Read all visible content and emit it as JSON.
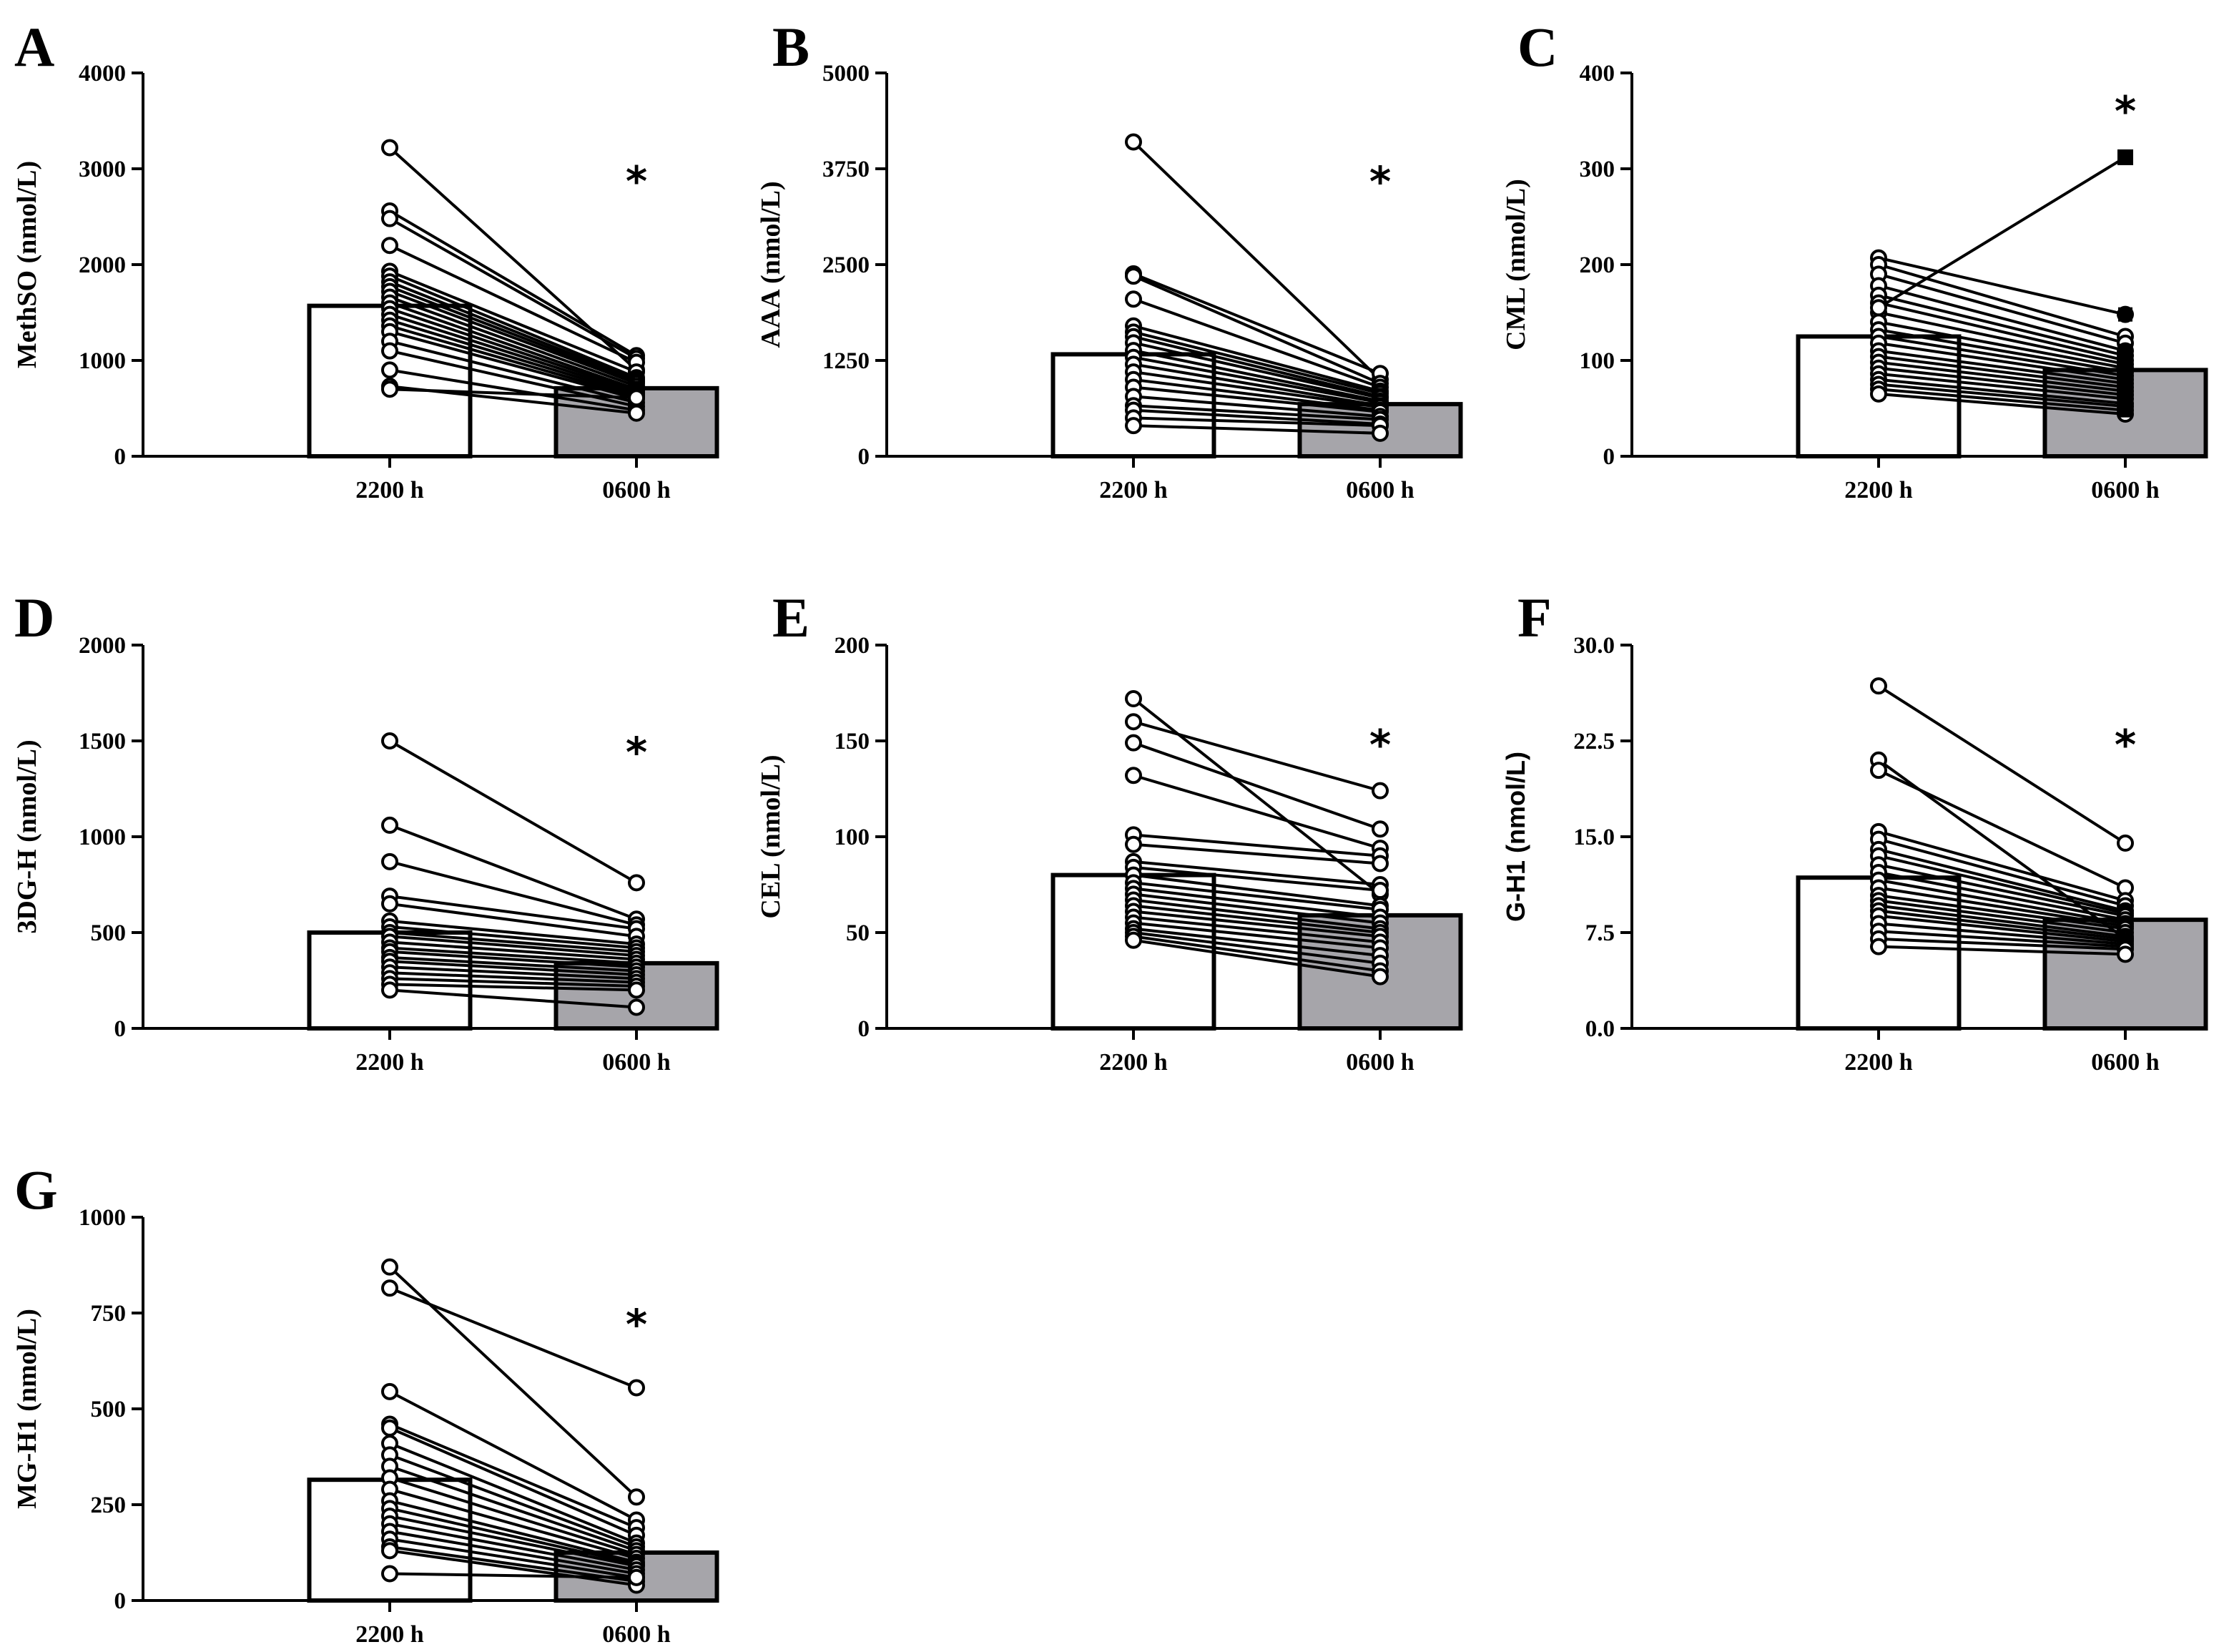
{
  "colors": {
    "bar_2200": "#ffffff",
    "bar_0600": "#a6a5aa",
    "ink": "#000000"
  },
  "chart_data": [
    {
      "panel": "A",
      "type": "bar",
      "ylabel": "MethSO (nmol/L)",
      "categories": [
        "2200 h",
        "0600 h"
      ],
      "ylim": [
        0,
        4000
      ],
      "ticks": [
        "0",
        "1000",
        "2000",
        "3000",
        "4000"
      ],
      "tick_values": [
        0,
        1000,
        2000,
        3000,
        4000
      ],
      "bar_values": [
        1570,
        710
      ],
      "significance": "*",
      "sig_y": 2870,
      "pairs": [
        [
          3220,
          900
        ],
        [
          2560,
          1050
        ],
        [
          2480,
          1020
        ],
        [
          2200,
          980
        ],
        [
          1930,
          880
        ],
        [
          1880,
          820
        ],
        [
          1820,
          800
        ],
        [
          1770,
          780
        ],
        [
          1720,
          760
        ],
        [
          1660,
          730
        ],
        [
          1600,
          700
        ],
        [
          1540,
          680
        ],
        [
          1480,
          660
        ],
        [
          1420,
          640
        ],
        [
          1360,
          620
        ],
        [
          1300,
          600
        ],
        [
          1200,
          560
        ],
        [
          1100,
          520
        ],
        [
          900,
          480
        ],
        [
          730,
          450
        ],
        [
          700,
          610
        ]
      ]
    },
    {
      "panel": "B",
      "type": "bar",
      "ylabel": "AAA (nmol/L)",
      "categories": [
        "2200 h",
        "0600 h"
      ],
      "ylim": [
        0,
        5000
      ],
      "ticks": [
        "0",
        "1250",
        "2500",
        "3750",
        "5000"
      ],
      "tick_values": [
        0,
        1250,
        2500,
        3750,
        5000
      ],
      "bar_values": [
        1330,
        680
      ],
      "significance": "*",
      "sig_y": 3580,
      "pairs": [
        [
          4100,
          1000
        ],
        [
          2380,
          1080
        ],
        [
          2350,
          950
        ],
        [
          2050,
          900
        ],
        [
          1700,
          850
        ],
        [
          1620,
          820
        ],
        [
          1560,
          780
        ],
        [
          1480,
          760
        ],
        [
          1380,
          720
        ],
        [
          1290,
          700
        ],
        [
          1200,
          660
        ],
        [
          1100,
          640
        ],
        [
          1000,
          600
        ],
        [
          900,
          580
        ],
        [
          780,
          520
        ],
        [
          660,
          480
        ],
        [
          600,
          420
        ],
        [
          500,
          400
        ],
        [
          400,
          300
        ]
      ]
    },
    {
      "panel": "C",
      "type": "bar",
      "ylabel": "CML (nmol/L)",
      "categories": [
        "2200 h",
        "0600 h"
      ],
      "ylim": [
        0,
        400
      ],
      "ticks": [
        "0",
        "100",
        "200",
        "300",
        "400"
      ],
      "tick_values": [
        0,
        100,
        200,
        300,
        400
      ],
      "bar_values": [
        125,
        90
      ],
      "significance": "*",
      "sig_y": 360,
      "outlier": [
        155,
        312
      ],
      "pairs": [
        [
          207,
          148
        ],
        [
          200,
          125
        ],
        [
          190,
          118
        ],
        [
          178,
          110
        ],
        [
          168,
          105
        ],
        [
          160,
          100
        ],
        [
          150,
          96
        ],
        [
          140,
          92
        ],
        [
          132,
          88
        ],
        [
          125,
          84
        ],
        [
          118,
          80
        ],
        [
          110,
          76
        ],
        [
          104,
          72
        ],
        [
          98,
          68
        ],
        [
          92,
          64
        ],
        [
          86,
          60
        ],
        [
          80,
          55
        ],
        [
          75,
          52
        ],
        [
          70,
          48
        ],
        [
          65,
          44
        ]
      ]
    },
    {
      "panel": "D",
      "type": "bar",
      "ylabel": "3DG-H (nmol/L)",
      "categories": [
        "2200 h",
        "0600 h"
      ],
      "ylim": [
        0,
        2000
      ],
      "ticks": [
        "0",
        "500",
        "1000",
        "1500",
        "2000"
      ],
      "tick_values": [
        0,
        500,
        1000,
        1500,
        2000
      ],
      "bar_values": [
        500,
        340
      ],
      "significance": "*",
      "sig_y": 1440,
      "pairs": [
        [
          1500,
          760
        ],
        [
          1060,
          570
        ],
        [
          870,
          540
        ],
        [
          690,
          520
        ],
        [
          650,
          480
        ],
        [
          560,
          440
        ],
        [
          530,
          420
        ],
        [
          500,
          400
        ],
        [
          480,
          380
        ],
        [
          450,
          360
        ],
        [
          420,
          340
        ],
        [
          400,
          320
        ],
        [
          370,
          300
        ],
        [
          350,
          280
        ],
        [
          320,
          260
        ],
        [
          290,
          240
        ],
        [
          260,
          220
        ],
        [
          230,
          200
        ],
        [
          200,
          110
        ]
      ]
    },
    {
      "panel": "E",
      "type": "bar",
      "ylabel": "CEL (nmol/L)",
      "categories": [
        "2200 h",
        "0600 h"
      ],
      "ylim": [
        0,
        200
      ],
      "ticks": [
        "0",
        "50",
        "100",
        "150",
        "200"
      ],
      "tick_values": [
        0,
        50,
        100,
        150,
        200
      ],
      "bar_values": [
        80,
        59
      ],
      "significance": "*",
      "sig_y": 148,
      "pairs": [
        [
          172,
          70
        ],
        [
          160,
          124
        ],
        [
          149,
          104
        ],
        [
          132,
          94
        ],
        [
          101,
          90
        ],
        [
          96,
          86
        ],
        [
          87,
          75
        ],
        [
          84,
          72
        ],
        [
          80,
          64
        ],
        [
          76,
          62
        ],
        [
          73,
          58
        ],
        [
          70,
          55
        ],
        [
          67,
          52
        ],
        [
          64,
          50
        ],
        [
          61,
          48
        ],
        [
          58,
          45
        ],
        [
          55,
          42
        ],
        [
          52,
          38
        ],
        [
          50,
          34
        ],
        [
          48,
          30
        ],
        [
          46,
          27
        ]
      ]
    },
    {
      "panel": "F",
      "type": "bar",
      "ylabel": "G-H1 (nmol/L)",
      "categories": [
        "2200 h",
        "0600 h"
      ],
      "ylim": [
        0,
        30
      ],
      "ticks": [
        "0.0",
        "7.5",
        "15.0",
        "22.5",
        "30.0"
      ],
      "tick_values": [
        0,
        7.5,
        15,
        22.5,
        30
      ],
      "bar_values": [
        11.8,
        8.5
      ],
      "significance": "*",
      "sig_y": 22.2,
      "pairs": [
        [
          26.8,
          14.5
        ],
        [
          21.0,
          7.0
        ],
        [
          20.2,
          11.0
        ],
        [
          15.4,
          10.0
        ],
        [
          14.8,
          9.6
        ],
        [
          14.0,
          9.2
        ],
        [
          13.5,
          9.0
        ],
        [
          12.8,
          8.8
        ],
        [
          12.2,
          8.5
        ],
        [
          11.6,
          8.2
        ],
        [
          11.0,
          8.0
        ],
        [
          10.4,
          7.8
        ],
        [
          10.0,
          7.5
        ],
        [
          9.6,
          7.2
        ],
        [
          9.2,
          7.0
        ],
        [
          8.8,
          6.8
        ],
        [
          8.2,
          6.6
        ],
        [
          7.6,
          6.4
        ],
        [
          7.0,
          6.2
        ],
        [
          6.4,
          5.8
        ]
      ]
    },
    {
      "panel": "G",
      "type": "bar",
      "ylabel": "MG-H1 (nmol/L)",
      "categories": [
        "2200 h",
        "0600 h"
      ],
      "ylim": [
        0,
        1000
      ],
      "ticks": [
        "0",
        "250",
        "500",
        "750",
        "1000"
      ],
      "tick_values": [
        0,
        250,
        500,
        750,
        1000
      ],
      "bar_values": [
        315,
        125
      ],
      "significance": "*",
      "sig_y": 720,
      "pairs": [
        [
          870,
          270
        ],
        [
          815,
          555
        ],
        [
          545,
          210
        ],
        [
          460,
          190
        ],
        [
          450,
          170
        ],
        [
          410,
          150
        ],
        [
          380,
          140
        ],
        [
          350,
          130
        ],
        [
          320,
          120
        ],
        [
          290,
          110
        ],
        [
          260,
          100
        ],
        [
          240,
          95
        ],
        [
          220,
          90
        ],
        [
          200,
          80
        ],
        [
          180,
          70
        ],
        [
          160,
          60
        ],
        [
          140,
          50
        ],
        [
          130,
          40
        ],
        [
          70,
          60
        ]
      ]
    }
  ]
}
